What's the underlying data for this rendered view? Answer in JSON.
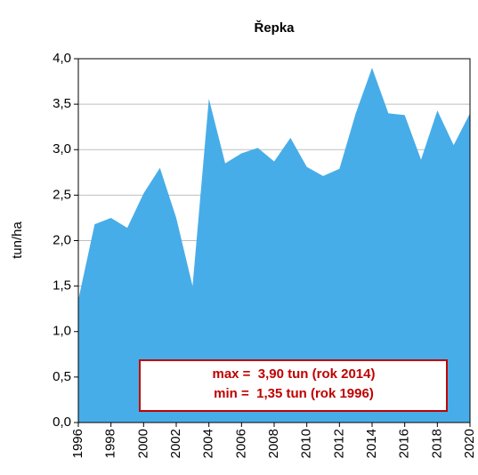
{
  "chart_data": {
    "type": "area",
    "title": "Řepka",
    "y_label": "tun/ha",
    "x": [
      1996,
      1997,
      1998,
      1999,
      2000,
      2001,
      2002,
      2003,
      2004,
      2005,
      2006,
      2007,
      2008,
      2009,
      2010,
      2011,
      2012,
      2013,
      2014,
      2015,
      2016,
      2017,
      2018,
      2019,
      2020
    ],
    "series": [
      {
        "name": "tun/ha",
        "color": "#47ade8",
        "values": [
          1.35,
          2.18,
          2.25,
          2.14,
          2.52,
          2.8,
          2.25,
          1.5,
          3.56,
          2.85,
          2.96,
          3.02,
          2.87,
          3.13,
          2.81,
          2.71,
          2.79,
          3.4,
          3.9,
          3.4,
          3.38,
          2.89,
          3.43,
          3.05,
          3.4
        ]
      }
    ],
    "xlim": [
      1996,
      2020
    ],
    "xticks": [
      1996,
      1998,
      2000,
      2002,
      2004,
      2006,
      2008,
      2010,
      2012,
      2014,
      2016,
      2018,
      2020
    ],
    "ylim": [
      0,
      4
    ],
    "yticks": [
      {
        "value": 0,
        "label": "0,0"
      },
      {
        "value": 0.5,
        "label": "0,5"
      },
      {
        "value": 1,
        "label": "1,0"
      },
      {
        "value": 1.5,
        "label": "1,5"
      },
      {
        "value": 2,
        "label": "2,0"
      },
      {
        "value": 2.5,
        "label": "2,5"
      },
      {
        "value": 3,
        "label": "3,0"
      },
      {
        "value": 3.5,
        "label": "3,5"
      },
      {
        "value": 4,
        "label": "4,0"
      }
    ],
    "grid": true,
    "annotations": [
      "max =  3,90 tun (rok 2014)",
      "min =  1,35 tun (rok 1996)"
    ]
  }
}
